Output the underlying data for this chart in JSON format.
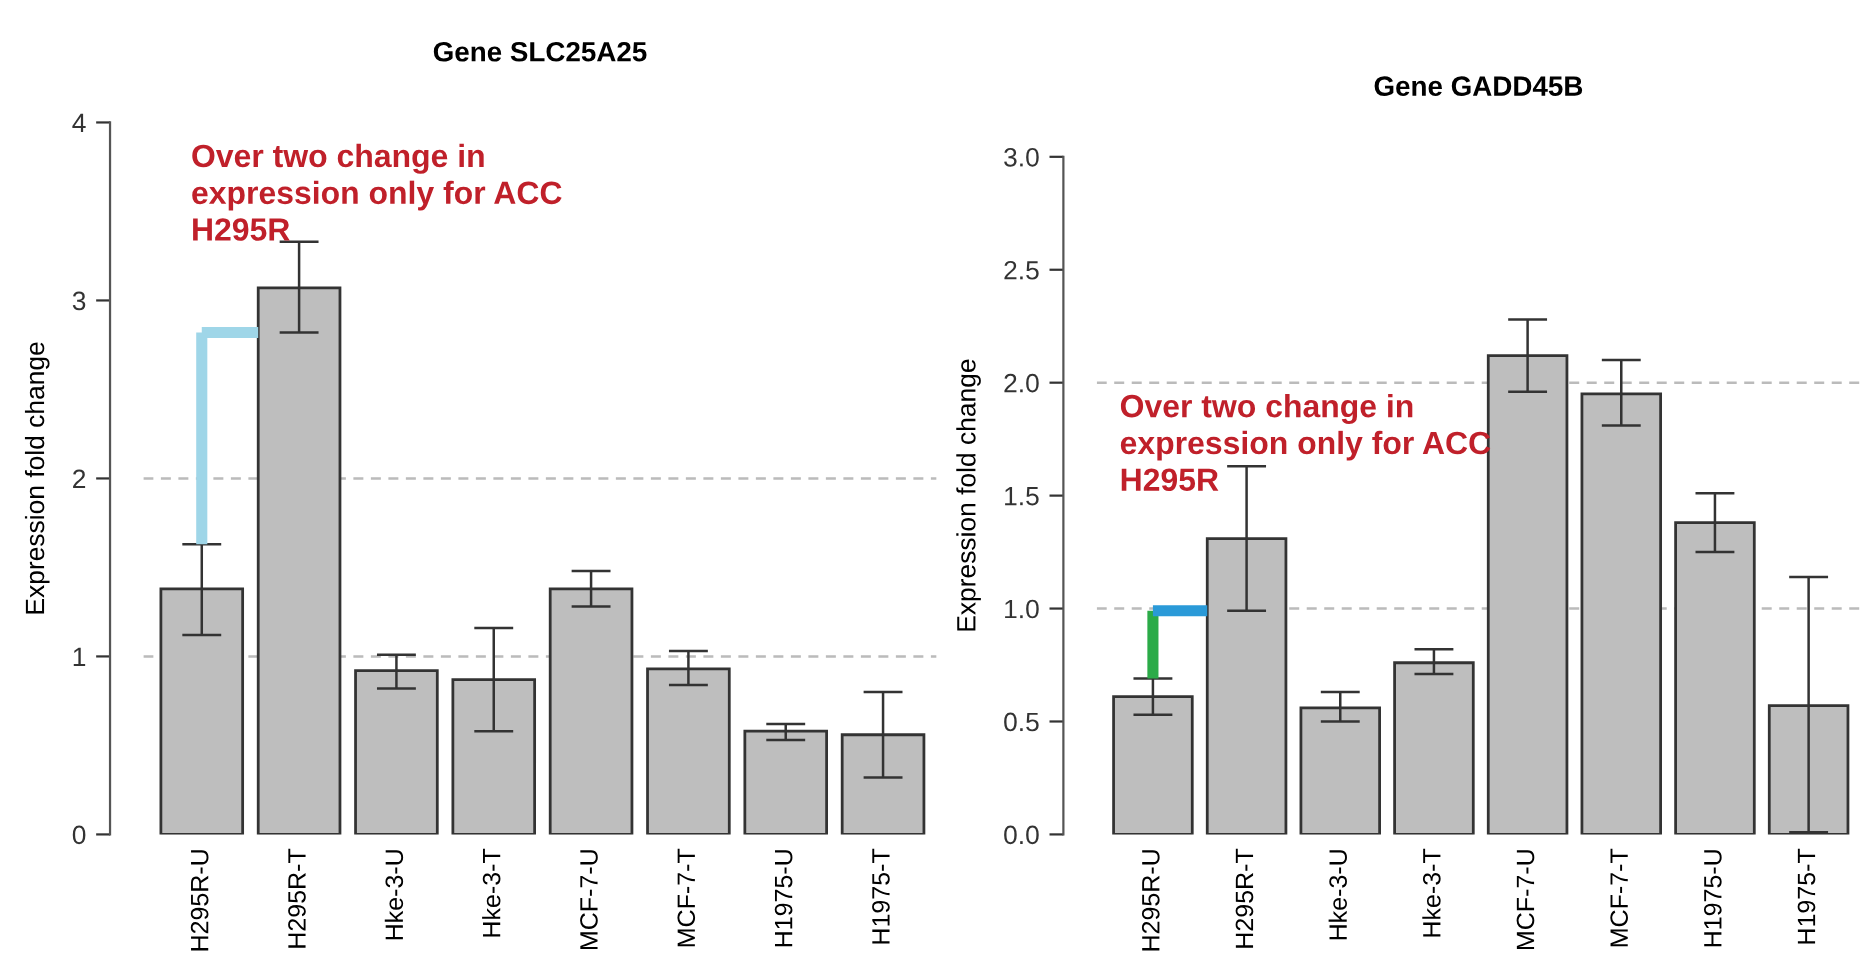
{
  "chart_data": [
    {
      "type": "bar",
      "title": "Gene SLC25A25",
      "ylabel": "Expression fold change",
      "categories": [
        "H295R-U",
        "H295R-T",
        "Hke-3-U",
        "Hke-3-T",
        "MCF-7-U",
        "MCF-7-T",
        "H1975-U",
        "H1975-T"
      ],
      "values": [
        1.38,
        3.07,
        0.92,
        0.87,
        1.38,
        0.93,
        0.58,
        0.56
      ],
      "errors": [
        [
          1.12,
          1.63
        ],
        [
          2.82,
          3.33
        ],
        [
          0.82,
          1.01
        ],
        [
          0.58,
          1.16
        ],
        [
          1.28,
          1.48
        ],
        [
          0.84,
          1.03
        ],
        [
          0.53,
          0.62
        ],
        [
          0.32,
          0.8
        ]
      ],
      "color": "#bebebe",
      "ylim": [
        0,
        4
      ],
      "yticks": [
        0,
        1,
        2,
        3,
        4
      ],
      "grid": false,
      "ref_lines": [
        {
          "axis": "y",
          "value": 1,
          "color": "#bbbbbb",
          "line_style": "dashed"
        },
        {
          "axis": "y",
          "value": 2,
          "color": "#bbbbbb",
          "line_style": "dashed"
        }
      ],
      "annotations": [
        "Over two change in expression only for ACC H295R"
      ]
    },
    {
      "type": "bar",
      "title": "Gene GADD45B",
      "ylabel": "Expression fold change",
      "categories": [
        "H295R-U",
        "H295R-T",
        "Hke-3-U",
        "Hke-3-T",
        "MCF-7-U",
        "MCF-7-T",
        "H1975-U",
        "H1975-T"
      ],
      "values": [
        0.61,
        1.31,
        0.56,
        0.76,
        2.12,
        1.95,
        1.38,
        0.57
      ],
      "errors": [
        [
          0.53,
          0.69
        ],
        [
          0.99,
          1.63
        ],
        [
          0.5,
          0.63
        ],
        [
          0.71,
          0.82
        ],
        [
          1.96,
          2.28
        ],
        [
          1.81,
          2.1
        ],
        [
          1.25,
          1.51
        ],
        [
          0.01,
          1.14
        ]
      ],
      "color": "#bebebe",
      "ylim": [
        0,
        3.0
      ],
      "yticks": [
        {
          "value": 0,
          "label": "0.0"
        },
        {
          "value": 0.5,
          "label": "0.5"
        },
        {
          "value": 1,
          "label": "1.0"
        },
        {
          "value": 1.5,
          "label": "1.5"
        },
        {
          "value": 2,
          "label": "2.0"
        },
        {
          "value": 2.5,
          "label": "2.5"
        },
        {
          "value": 3,
          "label": "3.0"
        }
      ],
      "grid": false,
      "ref_lines": [
        {
          "axis": "y",
          "value": 1,
          "color": "#bbbbbb",
          "line_style": "dashed"
        },
        {
          "axis": "y",
          "value": 2,
          "color": "#bbbbbb",
          "line_style": "dashed"
        }
      ],
      "annotations": [
        "Over two change in expression only for ACC H295R"
      ]
    }
  ]
}
